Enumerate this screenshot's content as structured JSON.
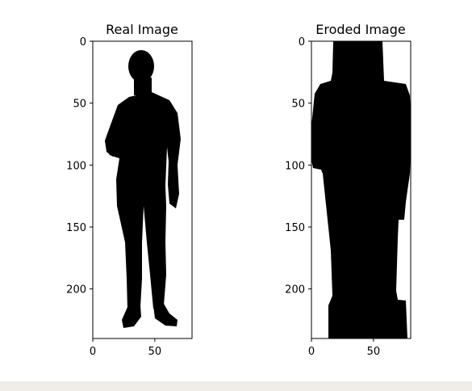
{
  "chart_data": [
    {
      "type": "image",
      "title": "Real Image",
      "xlim": [
        0,
        80
      ],
      "ylim": [
        240,
        0
      ],
      "xticks": [
        0,
        50
      ],
      "yticks": [
        0,
        50,
        100,
        150,
        200
      ],
      "ink_color": "#000000",
      "silhouette": [
        {
          "part": "head",
          "cx": 39,
          "cy": 20,
          "rx": 11,
          "ry": 14
        },
        {
          "part": "neck",
          "y_range": [
            30,
            42
          ],
          "x_range": [
            33,
            45
          ]
        },
        {
          "part": "shoulders",
          "y": 52,
          "x_range": [
            18,
            68
          ]
        },
        {
          "part": "left-arm",
          "y_range": [
            55,
            140
          ],
          "x_range": [
            10,
            22
          ]
        },
        {
          "part": "right-arm",
          "y_range": [
            55,
            140
          ],
          "x_range": [
            62,
            72
          ]
        },
        {
          "part": "torso",
          "y_range": [
            50,
            130
          ],
          "x_range": [
            20,
            66
          ]
        },
        {
          "part": "left-leg",
          "y_range": [
            130,
            215
          ],
          "x_range": [
            27,
            41
          ]
        },
        {
          "part": "right-leg",
          "y_range": [
            130,
            215
          ],
          "x_range": [
            42,
            57
          ]
        },
        {
          "part": "left-foot",
          "y_range": [
            215,
            231
          ],
          "x_range": [
            22,
            38
          ]
        },
        {
          "part": "right-foot",
          "y_range": [
            215,
            229
          ],
          "x_range": [
            46,
            70
          ]
        }
      ]
    },
    {
      "type": "image",
      "title": "Eroded Image",
      "xlim": [
        0,
        80
      ],
      "ylim": [
        240,
        0
      ],
      "xticks": [
        0,
        50
      ],
      "yticks": [
        0,
        50,
        100,
        150,
        200
      ],
      "ink_color": "#000000",
      "silhouette": [
        {
          "part": "head",
          "y_range": [
            0,
            35
          ],
          "x_range": [
            18,
            60
          ]
        },
        {
          "part": "shoulders",
          "y": 38,
          "x_range": [
            5,
            76
          ]
        },
        {
          "part": "body",
          "y_range": [
            40,
            140
          ],
          "x_range": [
            0,
            80
          ]
        },
        {
          "part": "legs",
          "y_range": [
            140,
            215
          ],
          "x_range": [
            14,
            70
          ]
        },
        {
          "part": "feet",
          "y_range": [
            210,
            240
          ],
          "x_range": [
            14,
            78
          ]
        }
      ]
    }
  ]
}
